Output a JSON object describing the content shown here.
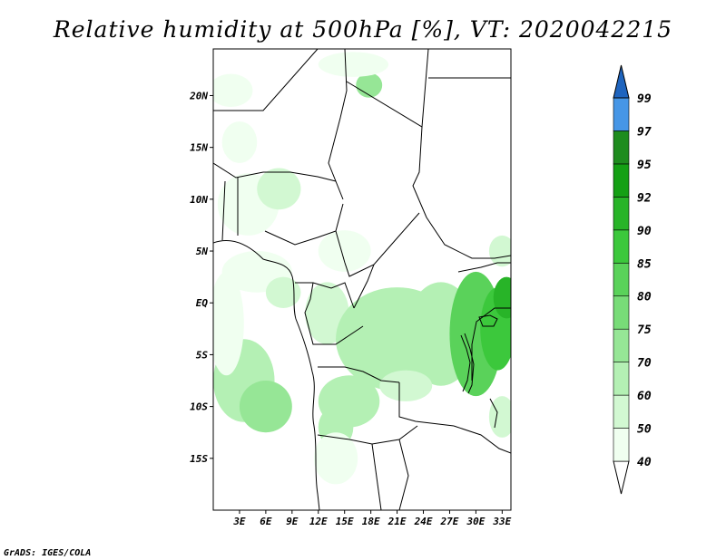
{
  "title": "Relative humidity at 500hPa [%], VT: 2020042215",
  "credit": "GrADS: IGES/COLA",
  "map": {
    "lon_range": [
      0,
      34
    ],
    "lat_range": [
      -20,
      24.5
    ],
    "lat_labels": [
      {
        "label": "20N",
        "lat": 20
      },
      {
        "label": "15N",
        "lat": 15
      },
      {
        "label": "10N",
        "lat": 10
      },
      {
        "label": "5N",
        "lat": 5
      },
      {
        "label": "EQ",
        "lat": 0
      },
      {
        "label": "5S",
        "lat": -5
      },
      {
        "label": "10S",
        "lat": -10
      },
      {
        "label": "15S",
        "lat": -15
      }
    ],
    "lon_labels": [
      {
        "label": "3E",
        "lon": 3
      },
      {
        "label": "6E",
        "lon": 6
      },
      {
        "label": "9E",
        "lon": 9
      },
      {
        "label": "12E",
        "lon": 12
      },
      {
        "label": "15E",
        "lon": 15
      },
      {
        "label": "18E",
        "lon": 18
      },
      {
        "label": "21E",
        "lon": 21
      },
      {
        "label": "24E",
        "lon": 24
      },
      {
        "label": "27E",
        "lon": 27
      },
      {
        "label": "30E",
        "lon": 30
      },
      {
        "label": "33E",
        "lon": 33
      }
    ]
  },
  "colorbar": {
    "levels": [
      "40",
      "50",
      "60",
      "70",
      "75",
      "80",
      "85",
      "90",
      "92",
      "95",
      "97",
      "99"
    ],
    "colors": [
      "#f0fff0",
      "#d2f8d2",
      "#b4f0b4",
      "#96e696",
      "#78dc78",
      "#5ad25a",
      "#3cc83c",
      "#28b428",
      "#14a014",
      "#1e8c1e",
      "#4696e6",
      "#2878d2",
      "#1e64be"
    ],
    "under_color": "#ffffff"
  },
  "fields": [
    {
      "lon": 3.5,
      "lat": -7.5,
      "rx": 3.5,
      "ry": 4,
      "value": 65
    },
    {
      "lon": 6,
      "lat": -10,
      "rx": 3,
      "ry": 2.5,
      "value": 72
    },
    {
      "lon": 1.5,
      "lat": -2,
      "rx": 2,
      "ry": 5,
      "value": 45
    },
    {
      "lon": 5,
      "lat": 3,
      "rx": 4,
      "ry": 2,
      "value": 45
    },
    {
      "lon": 8,
      "lat": 1,
      "rx": 2,
      "ry": 1.5,
      "value": 55
    },
    {
      "lon": 4,
      "lat": 9.5,
      "rx": 3.5,
      "ry": 3,
      "value": 45
    },
    {
      "lon": 7.5,
      "lat": 11,
      "rx": 2.5,
      "ry": 2,
      "value": 52
    },
    {
      "lon": 2,
      "lat": 20.5,
      "rx": 2.5,
      "ry": 1.6,
      "value": 45
    },
    {
      "lon": 3,
      "lat": 15.5,
      "rx": 2,
      "ry": 2,
      "value": 42
    },
    {
      "lon": 17.8,
      "lat": 21,
      "rx": 1.5,
      "ry": 1.2,
      "value": 72
    },
    {
      "lon": 16,
      "lat": 23,
      "rx": 4,
      "ry": 1.2,
      "value": 42
    },
    {
      "lon": 15,
      "lat": 5,
      "rx": 3,
      "ry": 2,
      "value": 45
    },
    {
      "lon": 13,
      "lat": -1,
      "rx": 2.5,
      "ry": 3,
      "value": 55
    },
    {
      "lon": 21,
      "lat": -3.5,
      "rx": 7,
      "ry": 5,
      "value": 62
    },
    {
      "lon": 26,
      "lat": -3,
      "rx": 4,
      "ry": 5,
      "value": 68
    },
    {
      "lon": 30,
      "lat": -3,
      "rx": 3,
      "ry": 6,
      "value": 82
    },
    {
      "lon": 32.5,
      "lat": -2.5,
      "rx": 2,
      "ry": 4,
      "value": 88
    },
    {
      "lon": 33.5,
      "lat": 0.5,
      "rx": 1.5,
      "ry": 2,
      "value": 91
    },
    {
      "lon": 33,
      "lat": 5,
      "rx": 1.5,
      "ry": 1.5,
      "value": 52
    },
    {
      "lon": 15.5,
      "lat": -9.5,
      "rx": 3.5,
      "ry": 2.5,
      "value": 68
    },
    {
      "lon": 14,
      "lat": -12,
      "rx": 2,
      "ry": 2,
      "value": 65
    },
    {
      "lon": 14,
      "lat": -15,
      "rx": 2.5,
      "ry": 2.5,
      "value": 45
    },
    {
      "lon": 22,
      "lat": -8,
      "rx": 3,
      "ry": 1.5,
      "value": 55
    },
    {
      "lon": 33,
      "lat": -11,
      "rx": 1.5,
      "ry": 2,
      "value": 55
    }
  ]
}
